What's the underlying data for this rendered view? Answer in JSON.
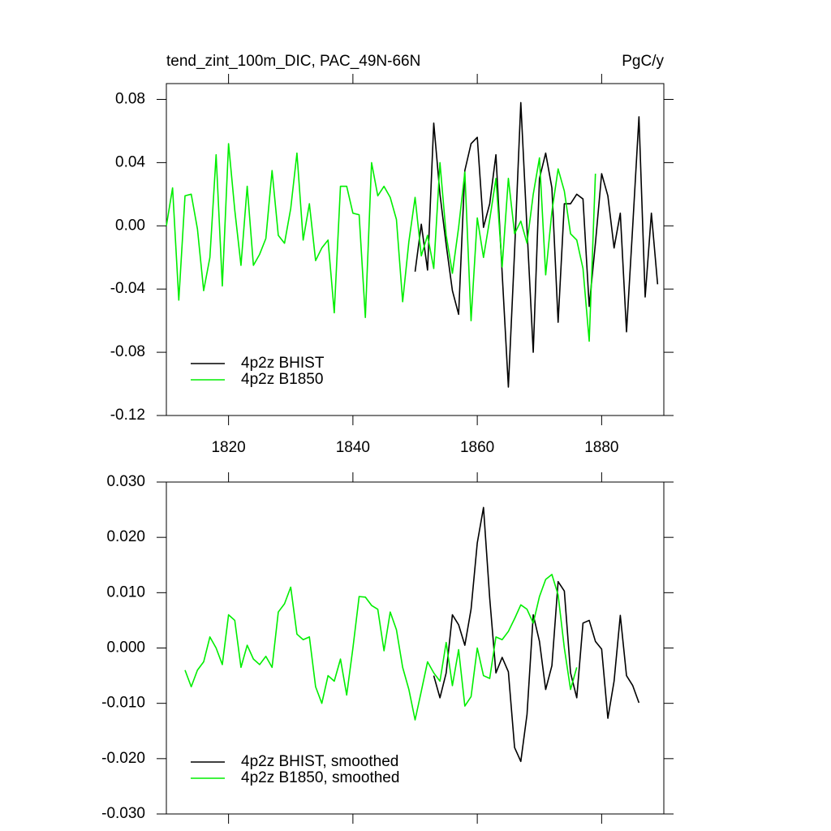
{
  "chart_data": [
    {
      "type": "line",
      "title": "tend_zint_100m_DIC, PAC_49N-66N",
      "units": "PgC/y",
      "x": [
        1810,
        1811,
        1812,
        1813,
        1814,
        1815,
        1816,
        1817,
        1818,
        1819,
        1820,
        1821,
        1822,
        1823,
        1824,
        1825,
        1826,
        1827,
        1828,
        1829,
        1830,
        1831,
        1832,
        1833,
        1834,
        1835,
        1836,
        1837,
        1838,
        1839,
        1840,
        1841,
        1842,
        1843,
        1844,
        1845,
        1846,
        1847,
        1848,
        1849,
        1850,
        1851,
        1852,
        1853,
        1854,
        1855,
        1856,
        1857,
        1858,
        1859,
        1860,
        1861,
        1862,
        1863,
        1864,
        1865,
        1866,
        1867,
        1868,
        1869,
        1870,
        1871,
        1872,
        1873,
        1874,
        1875,
        1876,
        1877,
        1878,
        1879,
        1880,
        1881,
        1882,
        1883,
        1884,
        1885,
        1886,
        1887,
        1888,
        1889
      ],
      "series": [
        {
          "name": "4p2z BHIST",
          "color": "#000000",
          "values": [
            null,
            null,
            null,
            null,
            null,
            null,
            null,
            null,
            null,
            null,
            null,
            null,
            null,
            null,
            null,
            null,
            null,
            null,
            null,
            null,
            null,
            null,
            null,
            null,
            null,
            null,
            null,
            null,
            null,
            null,
            null,
            null,
            null,
            null,
            null,
            null,
            null,
            null,
            null,
            null,
            -0.029,
            0.001,
            -0.028,
            0.065,
            0.02,
            -0.012,
            -0.041,
            -0.056,
            0.035,
            0.052,
            0.056,
            -0.001,
            0.014,
            0.045,
            -0.03,
            -0.102,
            -0.016,
            0.078,
            -0.002,
            -0.08,
            0.03,
            0.046,
            0.024,
            -0.061,
            0.014,
            0.014,
            0.02,
            0.017,
            -0.051,
            -0.011,
            0.033,
            0.019,
            -0.014,
            0.008,
            -0.067,
            0.0,
            0.069,
            -0.045,
            0.008,
            -0.037
          ]
        },
        {
          "name": "4p2z B1850",
          "color": "#00ee00",
          "values": [
            0.0,
            0.024,
            -0.047,
            0.019,
            0.02,
            -0.002,
            -0.041,
            -0.02,
            0.045,
            -0.038,
            0.052,
            0.01,
            -0.025,
            0.025,
            -0.025,
            -0.018,
            -0.008,
            0.035,
            -0.006,
            -0.011,
            0.011,
            0.046,
            -0.009,
            0.014,
            -0.022,
            -0.014,
            -0.009,
            -0.055,
            0.025,
            0.025,
            0.008,
            0.007,
            -0.058,
            0.04,
            0.019,
            0.025,
            0.018,
            0.004,
            -0.048,
            -0.01,
            0.018,
            -0.019,
            -0.006,
            -0.027,
            0.04,
            -0.006,
            -0.03,
            -0.001,
            0.034,
            -0.06,
            0.005,
            -0.02,
            0.004,
            0.03,
            -0.026,
            0.03,
            -0.005,
            0.003,
            -0.011,
            0.02,
            0.043,
            -0.031,
            0.009,
            0.036,
            0.022,
            -0.005,
            -0.009,
            -0.027,
            -0.073,
            0.033,
            null,
            null,
            null,
            null,
            null,
            null,
            null,
            null,
            null,
            null
          ]
        }
      ],
      "xlim": [
        1810,
        1890
      ],
      "xticks": [
        1820,
        1840,
        1860,
        1880
      ],
      "ylim": [
        -0.12,
        0.09
      ],
      "yticks": [
        {
          "value": 0.08,
          "label": "0.08"
        },
        {
          "value": 0.04,
          "label": "0.04"
        },
        {
          "value": 0,
          "label": "0.00"
        },
        {
          "value": -0.04,
          "label": "-0.04"
        },
        {
          "value": -0.08,
          "label": "-0.08"
        },
        {
          "value": -0.12,
          "label": "-0.12"
        }
      ],
      "legend": "bottom-left"
    },
    {
      "type": "line",
      "x": [
        1810,
        1811,
        1812,
        1813,
        1814,
        1815,
        1816,
        1817,
        1818,
        1819,
        1820,
        1821,
        1822,
        1823,
        1824,
        1825,
        1826,
        1827,
        1828,
        1829,
        1830,
        1831,
        1832,
        1833,
        1834,
        1835,
        1836,
        1837,
        1838,
        1839,
        1840,
        1841,
        1842,
        1843,
        1844,
        1845,
        1846,
        1847,
        1848,
        1849,
        1850,
        1851,
        1852,
        1853,
        1854,
        1855,
        1856,
        1857,
        1858,
        1859,
        1860,
        1861,
        1862,
        1863,
        1864,
        1865,
        1866,
        1867,
        1868,
        1869,
        1870,
        1871,
        1872,
        1873,
        1874,
        1875,
        1876,
        1877,
        1878,
        1879,
        1880,
        1881,
        1882,
        1883,
        1884,
        1885,
        1886,
        1887,
        1888,
        1889
      ],
      "series": [
        {
          "name": "4p2z BHIST, smoothed",
          "color": "#000000",
          "values": [
            null,
            null,
            null,
            null,
            null,
            null,
            null,
            null,
            null,
            null,
            null,
            null,
            null,
            null,
            null,
            null,
            null,
            null,
            null,
            null,
            null,
            null,
            null,
            null,
            null,
            null,
            null,
            null,
            null,
            null,
            null,
            null,
            null,
            null,
            null,
            null,
            null,
            null,
            null,
            null,
            null,
            null,
            null,
            -0.005,
            -0.009,
            -0.0045,
            0.006,
            0.0042,
            0.0005,
            0.007,
            0.019,
            0.0254,
            0.009,
            -0.0045,
            -0.0017,
            -0.0043,
            -0.018,
            -0.0205,
            -0.012,
            0.006,
            0.0012,
            -0.0075,
            -0.0032,
            0.012,
            0.0103,
            -0.0045,
            -0.009,
            0.0045,
            0.005,
            0.0012,
            -0.0002,
            -0.0127,
            -0.006,
            0.0059,
            -0.005,
            -0.0068,
            -0.0099,
            null,
            null,
            null
          ]
        },
        {
          "name": "4p2z B1850, smoothed",
          "color": "#00ee00",
          "values": [
            null,
            null,
            null,
            -0.004,
            -0.007,
            -0.004,
            -0.0025,
            0.002,
            0.0,
            -0.003,
            0.006,
            0.005,
            -0.0035,
            0.0005,
            -0.002,
            -0.003,
            -0.0015,
            -0.0035,
            0.0065,
            0.008,
            0.011,
            0.0025,
            0.0015,
            0.002,
            -0.007,
            -0.01,
            -0.005,
            -0.006,
            -0.002,
            -0.0085,
            0.0,
            0.0093,
            0.0092,
            0.0077,
            0.007,
            -0.0005,
            0.0065,
            0.0033,
            -0.0035,
            -0.0075,
            -0.013,
            -0.0078,
            -0.0025,
            -0.0045,
            -0.006,
            0.001,
            -0.0068,
            -0.0003,
            -0.0105,
            -0.0088,
            0.0,
            -0.005,
            -0.0055,
            0.002,
            0.0015,
            0.003,
            0.0053,
            0.0078,
            0.007,
            0.0045,
            0.0093,
            0.0124,
            0.0133,
            0.0096,
            0.0,
            -0.0075,
            -0.0035,
            null,
            null,
            null,
            null,
            null,
            null,
            null,
            null,
            null,
            null,
            null,
            null,
            null
          ]
        }
      ],
      "xlim": [
        1810,
        1890
      ],
      "xticks": [
        1820,
        1840,
        1860,
        1880
      ],
      "ylim": [
        -0.03,
        0.03
      ],
      "yticks": [
        {
          "value": 0.03,
          "label": "0.030"
        },
        {
          "value": 0.02,
          "label": "0.020"
        },
        {
          "value": 0.01,
          "label": "0.010"
        },
        {
          "value": 0,
          "label": "0.000"
        },
        {
          "value": -0.01,
          "label": "-0.010"
        },
        {
          "value": -0.02,
          "label": "-0.020"
        },
        {
          "value": -0.03,
          "label": "-0.030"
        }
      ],
      "legend": "bottom-left"
    }
  ]
}
